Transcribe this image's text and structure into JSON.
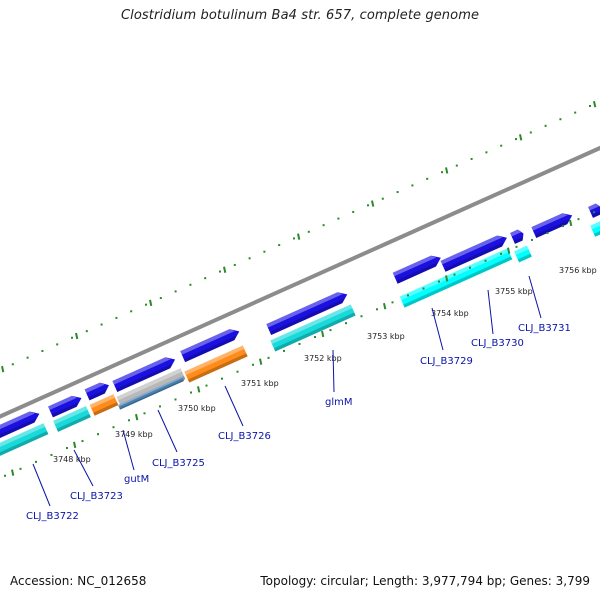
{
  "title": "Clostridium botulinum Ba4 str. 657, complete genome",
  "footer": {
    "accession": "Accession: NC_012658",
    "topology": "Topology: circular; Length: 3,977,794 bp; Genes: 3,799"
  },
  "ticks": [
    "3748 kbp",
    "3749 kbp",
    "3750 kbp",
    "3751 kbp",
    "3752 kbp",
    "3753 kbp",
    "3754 kbp",
    "3755 kbp",
    "3756 kbp"
  ],
  "genes": [
    "CLJ_B3722",
    "CLJ_B3723",
    "gutM",
    "CLJ_B3725",
    "CLJ_B3726",
    "glmM",
    "CLJ_B3729",
    "CLJ_B3730",
    "CLJ_B3731"
  ],
  "colors": {
    "backbone": "#8c8c8c",
    "gene_fwd": "#1a10e0",
    "cds_cyan": "#18dada",
    "cds_cyan_bright": "#00ffff",
    "cds_orange": "#ff8c1a",
    "cds_grey": "#b8b8b8",
    "cds_steel": "#4a7fb0",
    "tick_green": "#2a8a2a",
    "label_blue": "#0a14a8"
  }
}
